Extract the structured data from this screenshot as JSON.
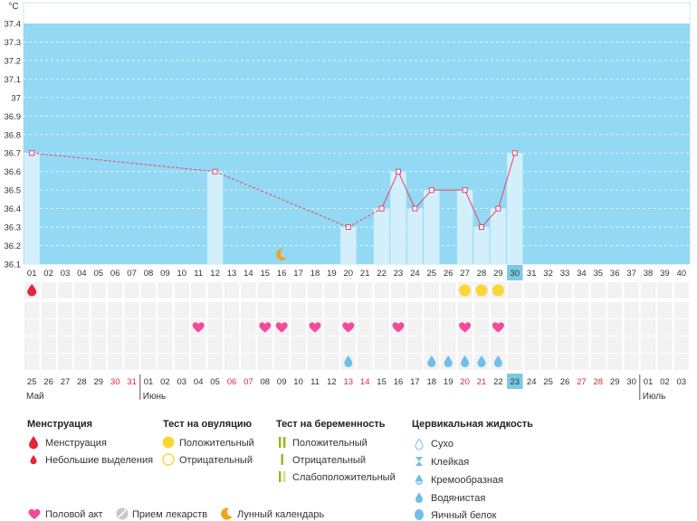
{
  "chart_data": {
    "type": "line",
    "ylabel": "°C",
    "ylim": [
      36.1,
      37.4
    ],
    "y_ticks": [
      "37.4",
      "37.3",
      "37.2",
      "37.1",
      "37",
      "36.9",
      "36.8",
      "36.7",
      "36.6",
      "36.5",
      "36.4",
      "36.3",
      "36.2",
      "36.1"
    ],
    "cycle_days": [
      "01",
      "02",
      "03",
      "04",
      "05",
      "06",
      "07",
      "08",
      "09",
      "10",
      "11",
      "12",
      "13",
      "14",
      "15",
      "16",
      "17",
      "18",
      "19",
      "20",
      "21",
      "22",
      "23",
      "24",
      "25",
      "26",
      "27",
      "28",
      "29",
      "30",
      "31",
      "32",
      "33",
      "34",
      "35",
      "36",
      "37",
      "38",
      "39",
      "40"
    ],
    "highlight_day": "30",
    "dates": [
      "25",
      "26",
      "27",
      "28",
      "29",
      "30",
      "31",
      "01",
      "02",
      "03",
      "04",
      "05",
      "06",
      "07",
      "08",
      "09",
      "10",
      "11",
      "12",
      "13",
      "14",
      "15",
      "16",
      "17",
      "18",
      "19",
      "20",
      "21",
      "22",
      "23",
      "24",
      "25",
      "26",
      "27",
      "28",
      "29",
      "30",
      "01",
      "02",
      "03"
    ],
    "date_red": [
      false,
      false,
      false,
      false,
      false,
      true,
      true,
      false,
      false,
      false,
      false,
      false,
      true,
      true,
      false,
      false,
      false,
      false,
      false,
      true,
      true,
      false,
      false,
      false,
      false,
      false,
      true,
      true,
      false,
      false,
      false,
      false,
      false,
      true,
      true,
      false,
      false,
      false,
      false,
      false
    ],
    "highlight_date_index": 29,
    "months": [
      {
        "name": "Май",
        "start_index": 0
      },
      {
        "name": "Июнь",
        "start_index": 7
      },
      {
        "name": "Июль",
        "start_index": 37
      }
    ],
    "series": [
      {
        "points": [
          {
            "day": 1,
            "temp": 36.7
          },
          {
            "day": 12,
            "temp": 36.6
          },
          {
            "day": 20,
            "temp": 36.3
          },
          {
            "day": 22,
            "temp": 36.4
          },
          {
            "day": 23,
            "temp": 36.6
          },
          {
            "day": 24,
            "temp": 36.4
          },
          {
            "day": 25,
            "temp": 36.5
          },
          {
            "day": 27,
            "temp": 36.5
          },
          {
            "day": 28,
            "temp": 36.3
          },
          {
            "day": 29,
            "temp": 36.4
          },
          {
            "day": 30,
            "temp": 36.7
          }
        ],
        "dashed_segments_before_day": 22,
        "line_color": "#e8436a",
        "bar_color": "#d3effb"
      }
    ],
    "markers": {
      "moon_day": 16,
      "menstruation_days": [
        1
      ],
      "ovulation_positive_days": [
        27,
        28,
        29
      ],
      "intercourse_days": [
        11,
        15,
        16,
        18,
        20,
        23,
        27,
        29
      ],
      "cervical_fluid_watery_days": [
        20,
        25,
        26,
        27,
        28,
        29
      ]
    },
    "colors": {
      "plot_bg": "#93d9f4",
      "line": "#e8436a",
      "bar": "#d3effb",
      "pink": "#f14b9c",
      "red": "#e0283a",
      "yellow": "#fbd638",
      "green": "#8bbd1a",
      "blue": "#6ebfe9",
      "highlight": "#7ec8e3",
      "grid_cell": "#f2f2f2"
    }
  },
  "legend": {
    "menstruation": {
      "title": "Менструация",
      "items": [
        "Менструация",
        "Небольшие выделения"
      ]
    },
    "ovulation_test": {
      "title": "Тест на овуляцию",
      "items": [
        "Положительный",
        "Отрицательный"
      ]
    },
    "pregnancy_test": {
      "title": "Тест на беременность",
      "items": [
        "Положительный",
        "Отрицательный",
        "Слабоположительный"
      ]
    },
    "cervical_fluid": {
      "title": "Цервикальная жидкость",
      "items": [
        "Сухо",
        "Клейкая",
        "Кремообразная",
        "Водянистая",
        "Яичный белок"
      ]
    },
    "bottom": {
      "intercourse": "Половой акт",
      "medication": "Прием лекарств",
      "lunar": "Лунный календарь"
    }
  }
}
